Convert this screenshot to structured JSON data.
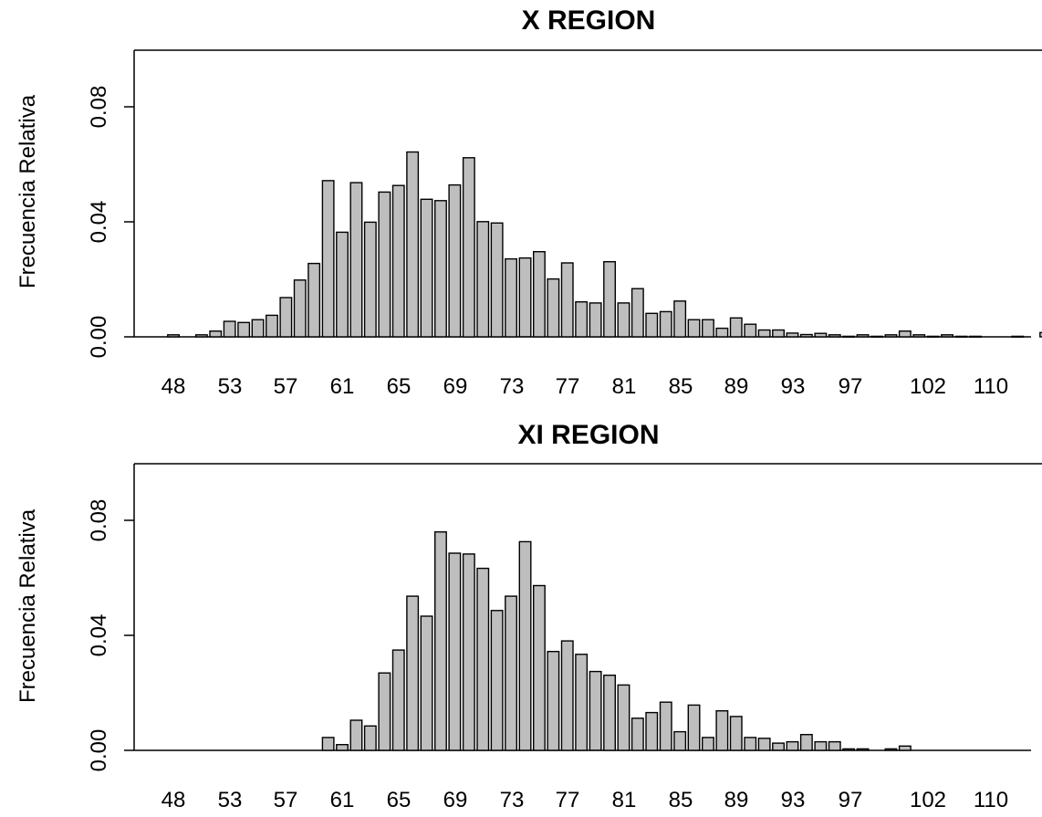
{
  "colors": {
    "bar_fill": "#bebebe",
    "bar_stroke": "#000000",
    "axis": "#000000"
  },
  "chart_data": [
    {
      "type": "bar",
      "title": "X REGION",
      "xlabel": "",
      "ylabel": "Frecuencia Relativa",
      "ylim": [
        0,
        0.1
      ],
      "yticks": [
        "0.00",
        "0.04",
        "0.08"
      ],
      "xtick_labels": [
        "48",
        "53",
        "57",
        "61",
        "65",
        "69",
        "73",
        "77",
        "81",
        "85",
        "89",
        "93",
        "97",
        "102",
        "110"
      ],
      "grid": false,
      "legend": "none",
      "categories": [
        "48",
        "50",
        "51",
        "52",
        "53",
        "54",
        "55",
        "56",
        "57",
        "58",
        "59",
        "60",
        "61",
        "62",
        "63",
        "64",
        "65",
        "66",
        "67",
        "68",
        "69",
        "70",
        "71",
        "72",
        "73",
        "74",
        "75",
        "76",
        "77",
        "78",
        "79",
        "80",
        "81",
        "82",
        "83",
        "84",
        "85",
        "86",
        "87",
        "88",
        "89",
        "90",
        "91",
        "92",
        "93",
        "94",
        "95",
        "96",
        "97",
        "98",
        "99",
        "100",
        "101",
        "102",
        "103",
        "104",
        "105",
        "108",
        "110"
      ],
      "values": [
        0.0007,
        0.0007,
        0.002,
        0.0054,
        0.005,
        0.006,
        0.0075,
        0.0137,
        0.0198,
        0.0256,
        0.0545,
        0.0365,
        0.0538,
        0.04,
        0.0505,
        0.0528,
        0.0645,
        0.048,
        0.0475,
        0.053,
        0.0625,
        0.0402,
        0.0397,
        0.0272,
        0.0275,
        0.0297,
        0.0202,
        0.0258,
        0.0122,
        0.0118,
        0.0262,
        0.0118,
        0.0168,
        0.0082,
        0.0088,
        0.0125,
        0.006,
        0.006,
        0.003,
        0.0066,
        0.0044,
        0.0024,
        0.0024,
        0.0013,
        0.0008,
        0.0012,
        0.0007,
        0.0002,
        0.0007,
        0.0002,
        0.0007,
        0.002,
        0.0007,
        0.0002,
        0.0007,
        0.0002,
        0.0002,
        0.0002,
        0.0015
      ]
    },
    {
      "type": "bar",
      "title": "XI REGION",
      "xlabel": "",
      "ylabel": "Frecuencia Relativa",
      "ylim": [
        0,
        0.1
      ],
      "yticks": [
        "0.00",
        "0.04",
        "0.08"
      ],
      "xtick_labels": [
        "48",
        "53",
        "57",
        "61",
        "65",
        "69",
        "73",
        "77",
        "81",
        "85",
        "89",
        "93",
        "97",
        "102",
        "110"
      ],
      "grid": false,
      "legend": "none",
      "categories": [
        "59",
        "60",
        "61",
        "62",
        "63",
        "64",
        "65",
        "66",
        "67",
        "68",
        "69",
        "70",
        "71",
        "72",
        "73",
        "74",
        "75",
        "76",
        "77",
        "78",
        "79",
        "80",
        "81",
        "82",
        "83",
        "84",
        "85",
        "86",
        "87",
        "88",
        "89",
        "90",
        "91",
        "92",
        "93",
        "94",
        "95",
        "96",
        "97",
        "99",
        "100"
      ],
      "values": [
        0.0045,
        0.002,
        0.0105,
        0.0085,
        0.027,
        0.035,
        0.0538,
        0.0468,
        0.0762,
        0.0688,
        0.0685,
        0.0635,
        0.0488,
        0.0538,
        0.0728,
        0.0575,
        0.0345,
        0.0382,
        0.0335,
        0.0275,
        0.0262,
        0.0228,
        0.0112,
        0.0132,
        0.0168,
        0.0065,
        0.0158,
        0.0045,
        0.0138,
        0.0118,
        0.0045,
        0.0042,
        0.0025,
        0.003,
        0.0055,
        0.003,
        0.003,
        0.0005,
        0.0005,
        0.0005,
        0.0015
      ]
    }
  ]
}
